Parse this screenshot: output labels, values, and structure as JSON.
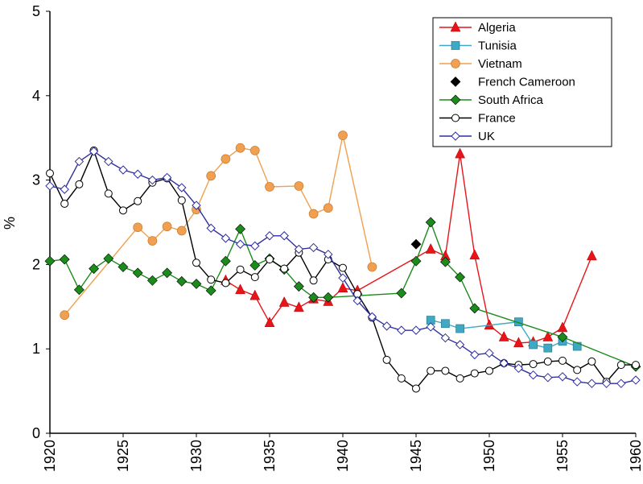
{
  "chart_data": {
    "type": "line",
    "y_label": "%",
    "xlim": [
      1920,
      1960
    ],
    "xticks": [
      1920,
      1925,
      1930,
      1935,
      1940,
      1945,
      1950,
      1955,
      1960
    ],
    "ylim": [
      0,
      5
    ],
    "yticks": [
      0,
      1,
      2,
      3,
      4,
      5
    ],
    "series": [
      {
        "name": "Algeria",
        "color": "#e8141a",
        "marker": "triangle",
        "x": [
          1932,
          1933,
          1934,
          1935,
          1936,
          1937,
          1938,
          1939,
          1940,
          1941,
          1946,
          1947,
          1948,
          1949,
          1950,
          1951,
          1952,
          1953,
          1954,
          1955,
          1957
        ],
        "values": [
          1.81,
          1.7,
          1.63,
          1.31,
          1.55,
          1.49,
          1.59,
          1.56,
          1.72,
          1.69,
          2.18,
          2.1,
          3.31,
          2.11,
          1.28,
          1.14,
          1.07,
          1.08,
          1.14,
          1.25,
          2.1
        ]
      },
      {
        "name": "Tunisia",
        "color": "#3fa9c4",
        "marker": "square",
        "x": [
          1946,
          1947,
          1948,
          1952,
          1953,
          1954,
          1955,
          1956
        ],
        "values": [
          1.34,
          1.3,
          1.24,
          1.32,
          1.05,
          1.01,
          1.09,
          1.03
        ]
      },
      {
        "name": "Vietnam",
        "color": "#f0a050",
        "marker": "circle",
        "x": [
          1921,
          1926,
          1927,
          1928,
          1929,
          1930,
          1931,
          1932,
          1933,
          1934,
          1935,
          1937,
          1938,
          1939,
          1940,
          1942
        ],
        "values": [
          1.4,
          2.44,
          2.28,
          2.45,
          2.4,
          2.65,
          3.05,
          3.25,
          3.38,
          3.35,
          2.92,
          2.93,
          2.6,
          2.67,
          3.53,
          1.97
        ]
      },
      {
        "name": "French Cameroon",
        "color": "#000000",
        "marker": "diamond",
        "x": [
          1945
        ],
        "values": [
          2.24
        ]
      },
      {
        "name": "South Africa",
        "color": "#1b8c1b",
        "marker": "diamond",
        "x": [
          1920,
          1921,
          1922,
          1923,
          1924,
          1925,
          1926,
          1927,
          1928,
          1929,
          1930,
          1931,
          1932,
          1933,
          1934,
          1935,
          1936,
          1937,
          1938,
          1939,
          1944,
          1945,
          1946,
          1947,
          1948,
          1949,
          1955,
          1960
        ],
        "values": [
          2.04,
          2.06,
          1.7,
          1.95,
          2.07,
          1.97,
          1.9,
          1.81,
          1.9,
          1.8,
          1.77,
          1.69,
          2.04,
          2.42,
          1.99,
          2.07,
          1.94,
          1.74,
          1.61,
          1.61,
          1.66,
          2.04,
          2.5,
          2.03,
          1.85,
          1.48,
          1.14,
          0.79
        ]
      },
      {
        "name": "France",
        "color": "#000000",
        "marker": "open-circle",
        "x": [
          1920,
          1921,
          1922,
          1923,
          1924,
          1925,
          1926,
          1927,
          1928,
          1929,
          1930,
          1931,
          1932,
          1933,
          1934,
          1935,
          1936,
          1937,
          1938,
          1939,
          1940,
          1941,
          1942,
          1943,
          1944,
          1945,
          1946,
          1947,
          1948,
          1949,
          1950,
          1951,
          1952,
          1953,
          1954,
          1955,
          1956,
          1957,
          1958,
          1959,
          1960
        ],
        "values": [
          3.08,
          2.72,
          2.95,
          3.35,
          2.84,
          2.64,
          2.75,
          2.97,
          3.02,
          2.76,
          2.02,
          1.82,
          1.78,
          1.94,
          1.85,
          2.06,
          1.95,
          2.14,
          1.81,
          2.06,
          1.96,
          1.65,
          1.37,
          0.87,
          0.65,
          0.53,
          0.74,
          0.74,
          0.65,
          0.71,
          0.74,
          0.83,
          0.81,
          0.82,
          0.85,
          0.86,
          0.75,
          0.85,
          0.61,
          0.81,
          0.81
        ]
      },
      {
        "name": "UK",
        "color": "#2e2ea0",
        "marker": "open-diamond",
        "x": [
          1920,
          1921,
          1922,
          1923,
          1924,
          1925,
          1926,
          1927,
          1928,
          1929,
          1930,
          1931,
          1932,
          1933,
          1934,
          1935,
          1936,
          1937,
          1938,
          1939,
          1940,
          1941,
          1942,
          1943,
          1944,
          1945,
          1946,
          1947,
          1948,
          1949,
          1950,
          1951,
          1952,
          1953,
          1954,
          1955,
          1956,
          1957,
          1958,
          1959,
          1960
        ],
        "values": [
          2.93,
          2.89,
          3.22,
          3.34,
          3.22,
          3.12,
          3.07,
          3.0,
          3.03,
          2.91,
          2.7,
          2.43,
          2.31,
          2.24,
          2.22,
          2.34,
          2.34,
          2.18,
          2.2,
          2.12,
          1.84,
          1.57,
          1.38,
          1.27,
          1.22,
          1.22,
          1.26,
          1.13,
          1.05,
          0.93,
          0.95,
          0.83,
          0.77,
          0.69,
          0.66,
          0.67,
          0.61,
          0.59,
          0.59,
          0.59,
          0.63
        ]
      }
    ]
  }
}
